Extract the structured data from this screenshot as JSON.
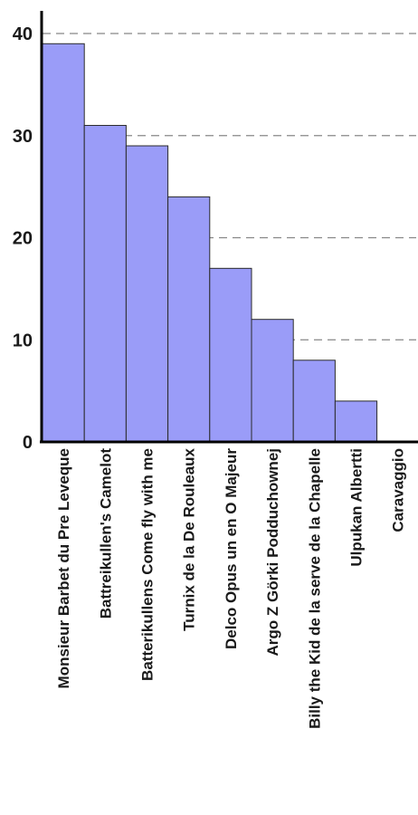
{
  "chart_data": {
    "type": "bar",
    "categories": [
      "Monsieur Barbet du Pre Leveque",
      "Battreikullen's Camelot",
      "Batterikullens Come fly with me",
      "Turnix de la De Rouleaux",
      "Delco Opus un en O Majeur",
      "Argo Z Görki Podduchownej",
      "Billy the Kid de la serve de la Chapelle",
      "Ulpukan Albertti",
      "Caravaggio"
    ],
    "values": [
      39,
      31,
      29,
      24,
      17,
      12,
      8,
      4,
      0
    ],
    "ylim": [
      0,
      40
    ],
    "yticks": [
      "0",
      "10",
      "20",
      "30",
      "40"
    ],
    "grid": "horizontal dashed",
    "colors": {
      "bar": "#9a9cf8",
      "grid": "#888888"
    }
  }
}
